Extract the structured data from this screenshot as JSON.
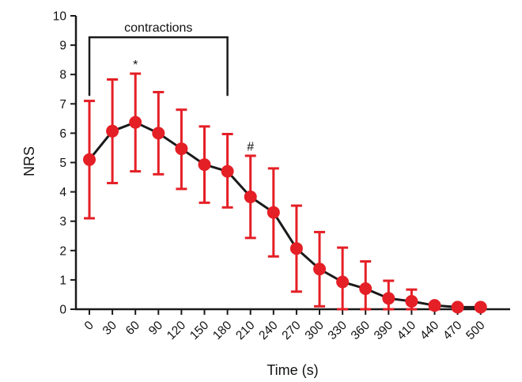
{
  "chart_data": {
    "type": "line",
    "title": "",
    "xlabel": "Time (s)",
    "ylabel": "NRS",
    "ylim": [
      0,
      10
    ],
    "y_ticks": [
      0,
      1,
      2,
      3,
      4,
      5,
      6,
      7,
      8,
      9,
      10
    ],
    "x_tick_labels": [
      "0",
      "30",
      "60",
      "90",
      "120",
      "150",
      "180",
      "210",
      "240",
      "270",
      "300",
      "330",
      "360",
      "390",
      "410",
      "440",
      "470",
      "500"
    ],
    "grid": false,
    "legend": "none",
    "colors": {
      "line": "#1a1a1a",
      "markers": "#e41f26",
      "error_bars": "#e41f26",
      "axes": "#1a1a1a"
    },
    "series": [
      {
        "values": [
          5.1,
          6.07,
          6.37,
          6.0,
          5.47,
          4.93,
          4.7,
          3.83,
          3.3,
          2.07,
          1.37,
          0.93,
          0.7,
          0.37,
          0.27,
          0.13,
          0.07,
          0.07
        ],
        "error_upper": [
          7.1,
          7.83,
          8.03,
          7.4,
          6.8,
          6.23,
          5.97,
          5.23,
          4.8,
          3.53,
          2.63,
          2.1,
          1.63,
          0.97,
          0.67,
          0.2,
          0.13,
          0.13
        ],
        "error_lower": [
          3.1,
          4.3,
          4.7,
          4.6,
          4.1,
          3.63,
          3.47,
          2.43,
          1.8,
          0.6,
          0.1,
          0.0,
          0.0,
          0.0,
          0.0,
          0.0,
          0.0,
          0.0
        ]
      }
    ],
    "annotations": {
      "bracket": {
        "label": "contractions",
        "from_index": 0,
        "to_index": 6,
        "y": 9.27,
        "drop_to": 7.27
      },
      "marks": [
        {
          "text": "*",
          "index": 2,
          "y": 8.2
        },
        {
          "text": "#",
          "index": 7,
          "y": 5.4
        }
      ]
    }
  }
}
